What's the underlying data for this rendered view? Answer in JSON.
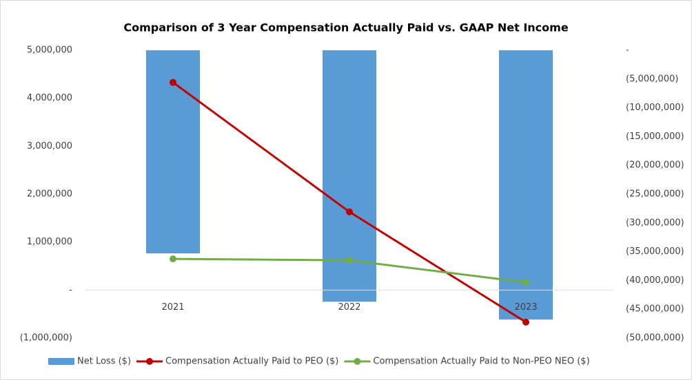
{
  "chart_data": {
    "type": "bar_line_combo",
    "title": "Comparison of 3 Year Compensation Actually Paid vs. GAAP Net Income",
    "categories": [
      "2021",
      "2022",
      "2023"
    ],
    "series": [
      {
        "name": "Net Loss ($)",
        "type": "bar",
        "axis": "y2",
        "color": "#5b9bd5",
        "values": [
          -35300000,
          -43700000,
          -46800000
        ]
      },
      {
        "name": "Compensation Actually Paid to PEO ($)",
        "type": "line",
        "axis": "y",
        "color": "#c00000",
        "values": [
          4330000,
          1630000,
          -670000
        ]
      },
      {
        "name": "Compensation Actually Paid to Non-PEO NEO ($)",
        "type": "line",
        "axis": "y",
        "color": "#70ad47",
        "values": [
          650000,
          620000,
          160000
        ]
      }
    ],
    "ylim": [
      -1000000,
      5000000
    ],
    "yticks": [
      {
        "value": -1000000,
        "label": "(1,000,000)"
      },
      {
        "value": 0,
        "label": "-"
      },
      {
        "value": 1000000,
        "label": "1,000,000"
      },
      {
        "value": 2000000,
        "label": "2,000,000"
      },
      {
        "value": 3000000,
        "label": "3,000,000"
      },
      {
        "value": 4000000,
        "label": "4,000,000"
      },
      {
        "value": 5000000,
        "label": "5,000,000"
      }
    ],
    "y2lim": [
      -50000000,
      0
    ],
    "y2ticks": [
      {
        "value": 0,
        "label": "-"
      },
      {
        "value": -5000000,
        "label": "(5,000,000)"
      },
      {
        "value": -10000000,
        "label": "(10,000,000)"
      },
      {
        "value": -15000000,
        "label": "(15,000,000)"
      },
      {
        "value": -20000000,
        "label": "(20,000,000)"
      },
      {
        "value": -25000000,
        "label": "(25,000,000)"
      },
      {
        "value": -30000000,
        "label": "(30,000,000)"
      },
      {
        "value": -35000000,
        "label": "(35,000,000)"
      },
      {
        "value": -40000000,
        "label": "(40,000,000)"
      },
      {
        "value": -45000000,
        "label": "(45,000,000)"
      },
      {
        "value": -50000000,
        "label": "(50,000,000)"
      }
    ],
    "legend": "bottom"
  }
}
